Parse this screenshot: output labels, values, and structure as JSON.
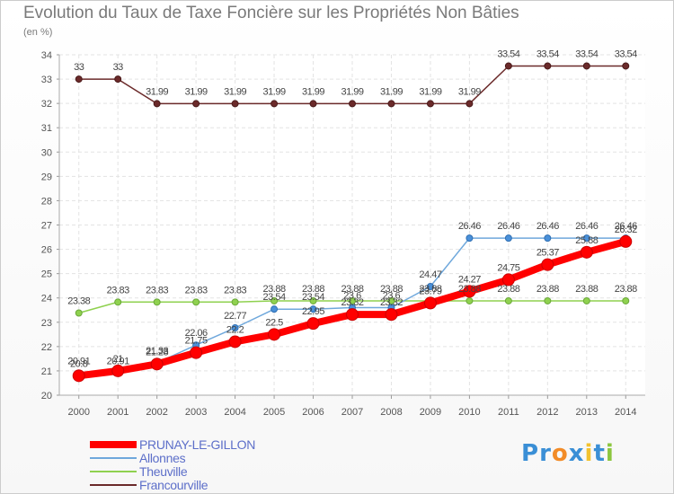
{
  "chart_data": {
    "type": "line",
    "title": "Evolution du Taux de Taxe Foncière sur les Propriétés Non Bâties",
    "ylabel": "(en %)",
    "xlabel": "",
    "ylim": [
      20,
      34
    ],
    "yticks": [
      "20",
      "21",
      "22",
      "23",
      "24",
      "25",
      "26",
      "27",
      "28",
      "29",
      "30",
      "31",
      "32",
      "33",
      "34"
    ],
    "x": [
      "2000",
      "2001",
      "2002",
      "2003",
      "2004",
      "2005",
      "2006",
      "2007",
      "2008",
      "2009",
      "2010",
      "2011",
      "2012",
      "2013",
      "2014"
    ],
    "legend_position": "bottom-left",
    "series": [
      {
        "name": "Francourville",
        "color": "#6b2a2a",
        "values": [
          33,
          33,
          31.99,
          31.99,
          31.99,
          31.99,
          31.99,
          31.99,
          31.99,
          31.99,
          31.99,
          33.54,
          33.54,
          33.54,
          33.54
        ],
        "labels": [
          "33",
          "33",
          "31.99",
          "31.99",
          "31.99",
          "31.99",
          "31.99",
          "31.99",
          "31.99",
          "31.99",
          "31.99",
          "33.54",
          "33.54",
          "33.54",
          "33.54"
        ]
      },
      {
        "name": "Theuville",
        "color": "#8fd14f",
        "values": [
          23.38,
          23.83,
          23.83,
          23.83,
          23.83,
          23.88,
          23.88,
          23.88,
          23.88,
          23.88,
          23.88,
          23.88,
          23.88,
          23.88,
          23.88
        ],
        "labels": [
          "23.38",
          "23.83",
          "23.83",
          "23.83",
          "23.83",
          "23.88",
          "23.88",
          "23.88",
          "23.88",
          "23.88",
          "23.88",
          "23.88",
          "23.88",
          "23.88",
          "23.88"
        ]
      },
      {
        "name": "Allonnes",
        "color": "#6fa8dc",
        "values": [
          20.91,
          20.91,
          21.33,
          22.06,
          22.77,
          23.54,
          23.54,
          23.6,
          23.6,
          24.47,
          26.46,
          26.46,
          26.46,
          26.46,
          26.46
        ],
        "labels": [
          "20.91",
          "20.91",
          "21.33",
          "22.06",
          "22.77",
          "23.54",
          "23.54",
          "23.6",
          "23.6",
          "24.47",
          "26.46",
          "26.46",
          "26.46",
          "26.46",
          "26.46"
        ]
      },
      {
        "name": "PRUNAY-LE-GILLON",
        "color": "#ff0000",
        "values": [
          20.8,
          21,
          21.28,
          21.75,
          22.2,
          22.5,
          22.95,
          23.32,
          23.32,
          23.79,
          24.27,
          24.75,
          25.37,
          25.88,
          26.32
        ],
        "labels": [
          "20.8",
          "21",
          "21.28",
          "21.75",
          "22.2",
          "22.5",
          "22.95",
          "23.32",
          "23.32",
          "23.79",
          "24.27",
          "24.75",
          "25.37",
          "25.88",
          "26.32"
        ]
      }
    ],
    "legend": [
      "PRUNAY-LE-GILLON",
      "Allonnes",
      "Theuville",
      "Francourville"
    ]
  },
  "logo": {
    "text": "Proxiti",
    "letters": [
      "P",
      "r",
      "o",
      "x",
      "i",
      "t",
      "i"
    ],
    "colors": [
      "#3a8fd6",
      "#3a8fd6",
      "#f28c28",
      "#3a8fd6",
      "#f2c22e",
      "#3a8fd6",
      "#8cc63f"
    ]
  }
}
